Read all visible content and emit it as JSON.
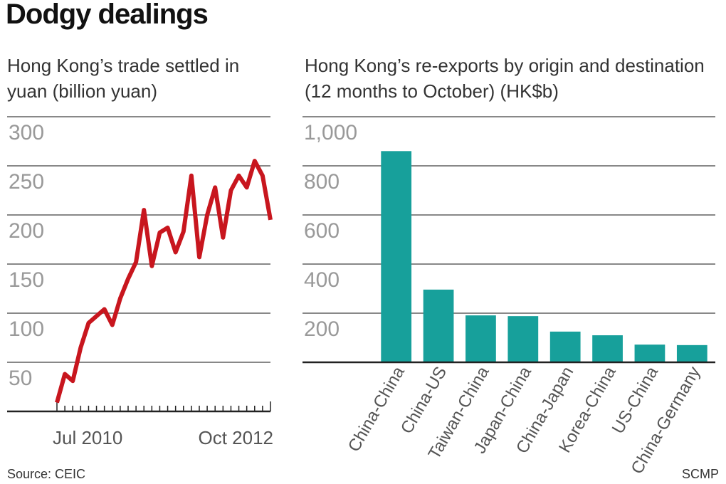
{
  "title": "Dodgy dealings",
  "source": "Source: CEIC",
  "credit": "SCMP",
  "chart_data": [
    {
      "type": "line",
      "title": "Hong Kong’s trade settled in yuan (billion yuan)",
      "categories": [
        "Jul 2010",
        null,
        null,
        null,
        null,
        null,
        null,
        null,
        null,
        null,
        null,
        null,
        null,
        null,
        null,
        null,
        null,
        null,
        null,
        null,
        null,
        null,
        null,
        null,
        null,
        null,
        null,
        "Oct 2012"
      ],
      "values": [
        9,
        38,
        31,
        65,
        90,
        97,
        104,
        88,
        115,
        135,
        152,
        205,
        148,
        182,
        187,
        162,
        183,
        240,
        157,
        200,
        228,
        177,
        225,
        240,
        228,
        255,
        240,
        195
      ],
      "color": "#c8161e",
      "ylim": [
        0,
        300
      ],
      "yticks": [
        50,
        100,
        150,
        200,
        250,
        300
      ],
      "grid": true
    },
    {
      "type": "bar",
      "title": "Hong Kong’s re-exports by origin and destination (12 months to October) (HK$b)",
      "categories": [
        "China-China",
        "China-US",
        "Taiwan-China",
        "Japan-China",
        "China-Japan",
        "Korea-China",
        "US-China",
        "China-Germany"
      ],
      "values": [
        860,
        296,
        191,
        188,
        125,
        110,
        72,
        70
      ],
      "color": "#17a09b",
      "ylim": [
        0,
        1000
      ],
      "yticks": [
        200,
        400,
        600,
        800,
        {
          "value": 1000,
          "label": "1,000"
        }
      ],
      "grid": true
    }
  ]
}
